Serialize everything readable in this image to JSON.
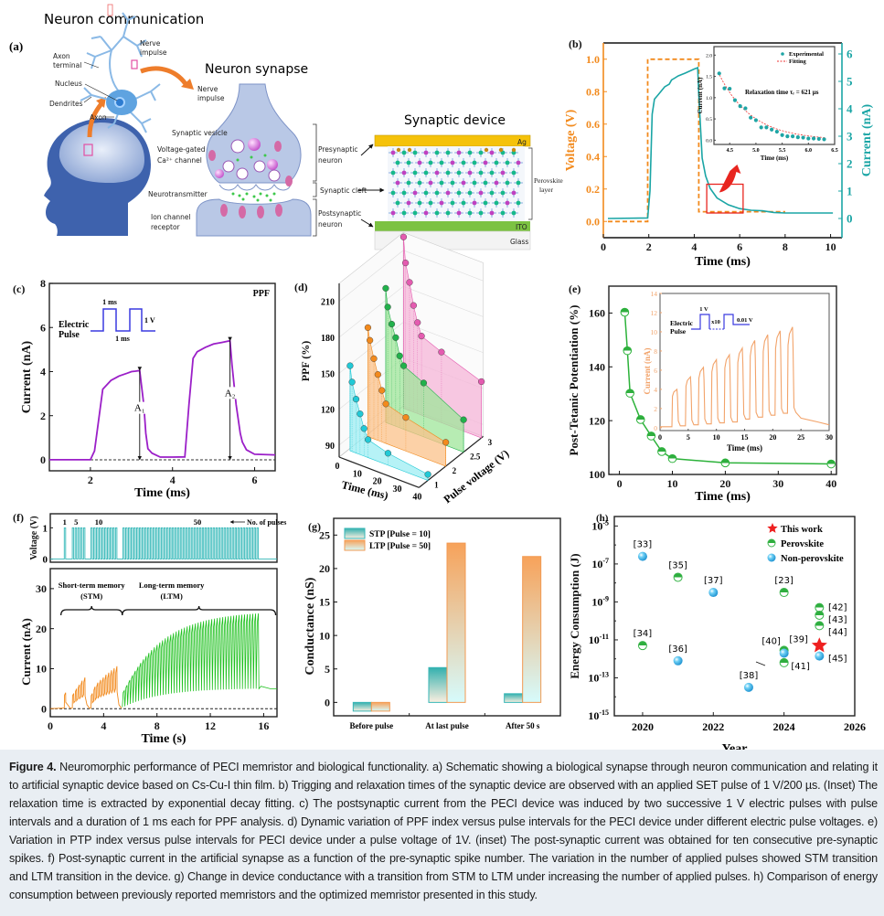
{
  "figure": {
    "number_label": "Figure 4.",
    "caption": "Neuromorphic performance of PECI memristor and biological functionality. a) Schematic showing a biological synapse through neuron communication and relating it to artificial synaptic device based on Cs-Cu-I thin film. b) Trigging and relaxation times of the synaptic device are observed with an applied SET pulse of 1 V/200 µs. (Inset) The relaxation time is extracted by exponential decay fitting. c) The postsynaptic current from the PECI device was induced by two successive 1 V electric pulses with pulse intervals and a duration of 1 ms each for PPF analysis. d) Dynamic variation of PPF index versus pulse intervals for the PECI device under different electric pulse voltages. e) Variation in PTP index versus pulse intervals for PECI device under a pulse voltage of 1V. (inset) The post-synaptic current was obtained for ten consecutive pre-synaptic spikes. f) Post-synaptic current in the artificial synapse as a function of the pre-synaptic spike number. The variation in the number of applied pulses showed STM transition and LTM transition in the device. g) Change in device conductance with a transition from STM to LTM under increasing the number of applied pulses. h) Comparison of energy consumption between previously reported memristors and the optimized memristor presented in this study."
  },
  "panel_a": {
    "label": "(a)",
    "title_communication": "Neuron communication",
    "title_synapse": "Neuron synapse",
    "title_device": "Synaptic device",
    "neuron_labels": {
      "nerve": "Nerve",
      "impulse": "impulse",
      "axon1": "Axon",
      "terminal": "terminal",
      "nucleus": "Nucleus",
      "dendrites": "Dendrites",
      "axon": "Axon"
    },
    "synapse_labels": {
      "nerve": "Nerve",
      "impulse": "impulse",
      "vesicle": "Synaptic vesicle",
      "vg1": "Voltage-gated",
      "vg2": "Ca²⁺ channel",
      "neurotransmitter": "Neurotransmitter",
      "ion1": "Ion channel",
      "ion2": "receptor",
      "pre1": "Presynaptic",
      "pre2": "neuron",
      "cleft": "Synaptic cleft",
      "post1": "Postsynaptic",
      "post2": "neuron"
    },
    "device_labels": {
      "ag": "Ag",
      "perov1": "Perovskite",
      "perov2": "layer",
      "ito": "ITO",
      "glass": "Glass"
    },
    "colors": {
      "ag": "#f5c20a",
      "ito": "#7cc242",
      "glass": "#f3f3f3",
      "brain": "#3f5e9e",
      "arrow": "#ee7d2b"
    }
  },
  "chart_data": [
    {
      "id": "b",
      "label": "(b)",
      "type": "line",
      "xlabel": "Time (ms)",
      "ylabel_left": "Voltage (V)",
      "ylabel_right": "Current (nA)",
      "xlim": [
        0,
        10.5
      ],
      "ylim_left": [
        -0.1,
        1.1
      ],
      "ylim_right": [
        -0.7,
        6.4
      ],
      "xticks": [
        0,
        2,
        4,
        6,
        8,
        10
      ],
      "yticks_left": [
        0.0,
        0.2,
        0.4,
        0.6,
        0.8,
        1.0
      ],
      "yticks_left_labels": [
        "0.0",
        "0.2",
        "0.4",
        "0.6",
        "0.8",
        "1.0"
      ],
      "yticks_right": [
        0,
        1,
        2,
        3,
        4,
        5,
        6
      ],
      "colors": {
        "voltage": "#f28a1d",
        "current": "#1aa5a5",
        "zoom_box": "#e8251f"
      },
      "series": [
        {
          "name": "Voltage",
          "axis": "left",
          "style": "dashed",
          "x": [
            0.2,
            1.95,
            1.95,
            4.2,
            4.2,
            8.0
          ],
          "y": [
            0.0,
            0.0,
            1.0,
            1.0,
            0.06,
            0.06
          ]
        },
        {
          "name": "Current",
          "axis": "right",
          "style": "solid",
          "x": [
            0.2,
            1.95,
            2.05,
            2.15,
            2.25,
            2.4,
            2.7,
            2.9,
            3.0,
            3.1,
            3.3,
            3.6,
            4.0,
            4.15,
            4.2,
            4.35,
            4.5,
            4.7,
            5.0,
            5.5,
            6.0,
            6.5,
            7.0,
            7.5,
            8.0,
            9.0,
            10.1
          ],
          "y": [
            0.0,
            0.02,
            1.0,
            3.8,
            4.35,
            4.5,
            4.8,
            4.9,
            5.05,
            5.1,
            5.2,
            5.3,
            5.45,
            5.5,
            4.5,
            2.2,
            1.55,
            1.1,
            0.75,
            0.5,
            0.36,
            0.3,
            0.28,
            0.22,
            0.2,
            0.2,
            0.2
          ]
        }
      ],
      "inset": {
        "xlabel": "Time (ms)",
        "ylabel": "Current (nA)",
        "xlim": [
          4.2,
          6.5
        ],
        "ylim": [
          -0.1,
          2.2
        ],
        "xticks": [
          4.5,
          5.0,
          5.5,
          6.0,
          6.5
        ],
        "xtick_labels": [
          "4.5",
          "5.0",
          "5.5",
          "6.0",
          "6.5"
        ],
        "yticks": [
          0.0,
          0.5,
          1.0,
          1.5,
          2.0
        ],
        "ytick_labels": [
          "0.0",
          "0.5",
          "1.0",
          "1.5",
          "2.0"
        ],
        "legend": [
          "Experimental",
          "Fitting"
        ],
        "annotation": "Relaxation time τᵣ = 621 µs",
        "experimental": {
          "x": [
            4.3,
            4.4,
            4.5,
            4.6,
            4.7,
            4.8,
            4.9,
            5.0,
            5.1,
            5.2,
            5.3,
            5.4,
            5.5,
            5.6,
            5.7,
            5.8,
            5.9,
            6.0,
            6.1,
            6.2,
            6.3
          ],
          "y": [
            1.57,
            1.22,
            1.21,
            0.94,
            0.8,
            0.75,
            0.53,
            0.47,
            0.3,
            0.3,
            0.25,
            0.2,
            0.12,
            0.09,
            0.09,
            0.07,
            0.06,
            0.04,
            0.04,
            0.03,
            0.02
          ]
        },
        "fit": {
          "tau_ms": 0.621,
          "a": 1.6,
          "x0": 4.28,
          "c": 0.0
        }
      }
    },
    {
      "id": "c",
      "label": "(c)",
      "type": "line",
      "xlabel": "Time (ms)",
      "ylabel": "Current (nA)",
      "xlim": [
        1.0,
        6.5
      ],
      "ylim": [
        -0.5,
        8
      ],
      "xticks": [
        2,
        4,
        6
      ],
      "yticks": [
        0,
        2,
        4,
        6,
        8
      ],
      "title_tag": "PPF",
      "color": "#9b1fc8",
      "series": [
        {
          "name": "Current",
          "x": [
            1.0,
            2.0,
            2.1,
            2.2,
            2.3,
            2.5,
            2.7,
            2.9,
            3.0,
            3.1,
            3.2,
            3.3,
            3.35,
            3.4,
            3.5,
            3.7,
            4.0,
            4.3,
            4.4,
            4.5,
            4.6,
            4.8,
            5.0,
            5.2,
            5.4,
            5.45,
            5.55,
            5.65,
            5.7,
            5.8,
            6.0,
            6.5
          ],
          "y": [
            0.0,
            0.0,
            0.4,
            1.8,
            3.2,
            3.6,
            3.8,
            3.93,
            4.0,
            4.02,
            4.05,
            2.5,
            1.2,
            0.5,
            0.3,
            0.12,
            0.12,
            0.13,
            2.5,
            4.6,
            4.9,
            5.1,
            5.25,
            5.32,
            5.4,
            4.3,
            2.5,
            1.2,
            0.8,
            0.45,
            0.25,
            0.22
          ]
        }
      ],
      "annotations": [
        {
          "text": "A₁",
          "x": 3.2,
          "y_from": 0,
          "y_to": 4.05
        },
        {
          "text": "A₂",
          "x": 5.4,
          "y_from": 0,
          "y_to": 5.4
        }
      ],
      "inset": {
        "label1": "Electric",
        "label2": "Pulse",
        "width_label": "1 ms",
        "gap_label": "1 ms",
        "amp_label": "1 V",
        "color": "#3a3ae0"
      }
    },
    {
      "id": "d",
      "label": "(d)",
      "type": "scatter",
      "projection": "3d",
      "xlabel": "Time (ms)",
      "ylabel": "Pulse voltage (V)",
      "zlabel": "PPF (%)",
      "xticks": [
        0,
        10,
        20,
        30,
        40
      ],
      "yticks": [
        "1",
        "2",
        "2.5",
        "3"
      ],
      "zticks": [
        90,
        120,
        150,
        180,
        210
      ],
      "zlim": [
        80,
        225
      ],
      "series": [
        {
          "name": "1 V",
          "color": "#22c9d6",
          "fill": "#9deef3",
          "x": [
            1,
            2,
            4,
            6,
            8,
            10,
            20,
            40
          ],
          "y": [
            151,
            138,
            125,
            114,
            103,
            95,
            90,
            85
          ]
        },
        {
          "name": "2 V",
          "color": "#f28a1d",
          "fill": "#fbc28a",
          "x": [
            1,
            2,
            4,
            6,
            8,
            10,
            20,
            40
          ],
          "y": [
            171,
            161,
            147,
            135,
            123,
            113,
            108,
            100
          ]
        },
        {
          "name": "2.5 V",
          "color": "#22b14c",
          "fill": "#9fe59a",
          "x": [
            1,
            2,
            4,
            6,
            8,
            10,
            20,
            40
          ],
          "y": [
            192,
            177,
            164,
            154,
            140,
            133,
            125,
            107
          ]
        },
        {
          "name": "3 V",
          "color": "#e45bb0",
          "fill": "#f6b5d8",
          "x": [
            1,
            2,
            4,
            6,
            8,
            10,
            20,
            40
          ],
          "y": [
            223,
            202,
            187,
            169,
            156,
            146,
            139,
            127
          ]
        }
      ]
    },
    {
      "id": "e",
      "label": "(e)",
      "type": "line",
      "xlabel": "Time (ms)",
      "ylabel": "Post-Tetanic Potentiation (%)",
      "xlim": [
        -2,
        41
      ],
      "ylim": [
        100,
        170
      ],
      "xticks": [
        0,
        10,
        20,
        30,
        40
      ],
      "yticks": [
        100,
        120,
        140,
        160
      ],
      "color": "#2cb23a",
      "series": [
        {
          "name": "PTP",
          "x": [
            1,
            1.5,
            2,
            4,
            6,
            8,
            10,
            20,
            40
          ],
          "y": [
            160.3,
            146,
            130.2,
            120.4,
            114.3,
            108.5,
            105.9,
            104.3,
            103.9
          ]
        }
      ],
      "inset": {
        "xlabel": "Time (ms)",
        "ylabel": "Current (nA)",
        "xlim": [
          0,
          30
        ],
        "ylim": [
          -0.3,
          14
        ],
        "xticks": [
          0,
          5,
          10,
          15,
          20,
          25,
          30
        ],
        "yticks": [
          0,
          2,
          4,
          6,
          8,
          10,
          12,
          14
        ],
        "color": "#f2a36a",
        "pulse_peaks": [
          4.0,
          5.3,
          6.3,
          7.1,
          7.6,
          8.3,
          9.1,
          9.7,
          10.1,
          10.5
        ],
        "pulse_bases": [
          0.2,
          0.3,
          0.4,
          0.5,
          0.6,
          0.9,
          1.1,
          1.3,
          1.5,
          1.6
        ],
        "pulse_starts": [
          2.1,
          4.5,
          6.8,
          9.1,
          11.4,
          13.7,
          15.9,
          18.2,
          20.4,
          22.6
        ],
        "legend": {
          "label1": "Electric",
          "label2": "Pulse",
          "amp": "1 V",
          "count": "x10",
          "rest": "0.01 V",
          "color": "#3a3ae0"
        }
      }
    },
    {
      "id": "f",
      "label": "(f)",
      "type": "line",
      "xlabel": "Time (s)",
      "ylabel_top": "Voltage (V)",
      "ylabel_bottom": "Current (nA)",
      "xlim": [
        0,
        17
      ],
      "xticks": [
        0,
        4,
        8,
        12,
        16
      ],
      "yticks_top": [
        0,
        1
      ],
      "yticks_bottom": [
        0,
        10,
        20,
        30
      ],
      "ylim_bottom": [
        -2,
        35
      ],
      "pulse_groups": [
        {
          "count": 1,
          "start": 1.05,
          "end": 1.15,
          "label": "1"
        },
        {
          "count": 5,
          "start": 1.65,
          "end": 2.6,
          "label": "5"
        },
        {
          "count": 10,
          "start": 3.05,
          "end": 5.0,
          "label": "10"
        },
        {
          "count": 50,
          "start": 5.45,
          "end": 15.6,
          "label": "50"
        }
      ],
      "pulses_legend": "No. of pulses",
      "stm_label": [
        "Short-term memory",
        "(STM)"
      ],
      "ltm_label": [
        "Long-term memory",
        "(LTM)"
      ],
      "stm_color": "#f28a1d",
      "ltm_color": "#1fc11f",
      "voltage_color": "#34b8b8",
      "stm_peaks": [
        [
          4.0
        ],
        [
          3.8,
          5.0,
          6.0,
          7.0,
          7.8
        ],
        [
          3.8,
          5.5,
          6.5,
          7.2,
          7.8,
          8.5,
          9.0,
          9.6,
          10.1,
          10.6
        ]
      ],
      "ltm_peak_start": 4.5,
      "ltm_peak_end": 23.8,
      "ltm_base_start": 0.6,
      "ltm_base_end": 5.0,
      "ltm_tail": 5.0
    },
    {
      "id": "g",
      "label": "(g)",
      "type": "bar",
      "ylabel": "Conductance (nS)",
      "categories": [
        "Before pulse",
        "At last pulse",
        "After 50 s"
      ],
      "ylim": [
        -2,
        27.5
      ],
      "yticks": [
        0,
        5,
        10,
        15,
        20,
        25
      ],
      "series": [
        {
          "name": "STP [Pulse = 10]",
          "values": [
            0.05,
            5.2,
            1.3
          ],
          "color_top": "#33b0ae",
          "color_bottom": "#fbefe0",
          "edge": "#35b5b5"
        },
        {
          "name": "LTP [Pulse = 50]",
          "values": [
            0.05,
            23.8,
            21.8
          ],
          "color_top": "#f7a25a",
          "color_bottom": "#d6fbfc",
          "edge": "#f29a52"
        }
      ]
    },
    {
      "id": "h",
      "label": "(h)",
      "type": "scatter",
      "xlabel": "Year",
      "ylabel": "Energy Consumption (J)",
      "xlim": [
        2019.2,
        2026
      ],
      "xticks": [
        2020,
        2022,
        2024,
        2026
      ],
      "yscale": "log",
      "ylim_exp": [
        -15,
        -4.5
      ],
      "yticks_exp": [
        -15,
        -13,
        -11,
        -9,
        -7,
        -5
      ],
      "legend": [
        "This work",
        "Perovskite",
        "Non-perovskite"
      ],
      "colors": {
        "this_work": "#ee2020",
        "perovskite": "#39b54a",
        "non_perovskite": "#29a8e0"
      },
      "points": [
        {
          "ref": "[33]",
          "year": 2020,
          "exp": -6.6,
          "kind": "non_perovskite"
        },
        {
          "ref": "[34]",
          "year": 2020,
          "exp": -11.3,
          "kind": "perovskite"
        },
        {
          "ref": "[35]",
          "year": 2021,
          "exp": -7.7,
          "kind": "perovskite"
        },
        {
          "ref": "[36]",
          "year": 2021,
          "exp": -12.1,
          "kind": "non_perovskite"
        },
        {
          "ref": "[37]",
          "year": 2022,
          "exp": -8.5,
          "kind": "non_perovskite"
        },
        {
          "ref": "[38]",
          "year": 2023,
          "exp": -13.5,
          "kind": "non_perovskite"
        },
        {
          "ref": "[23]",
          "year": 2024,
          "exp": -8.5,
          "kind": "perovskite"
        },
        {
          "ref": "[39]",
          "year": 2024,
          "exp": -11.55,
          "kind": "perovskite"
        },
        {
          "ref": "[40]",
          "year": 2024,
          "exp": -11.7,
          "kind": "non_perovskite"
        },
        {
          "ref": "[41]",
          "year": 2024,
          "exp": -12.2,
          "kind": "perovskite"
        },
        {
          "ref": "[42]",
          "year": 2025,
          "exp": -9.3,
          "kind": "perovskite"
        },
        {
          "ref": "[43]",
          "year": 2025,
          "exp": -9.7,
          "kind": "perovskite"
        },
        {
          "ref": "[44]",
          "year": 2025,
          "exp": -10.25,
          "kind": "perovskite"
        },
        {
          "ref": "[45]",
          "year": 2025,
          "exp": -11.85,
          "kind": "non_perovskite"
        },
        {
          "ref": "",
          "year": 2025,
          "exp": -11.3,
          "kind": "this_work"
        }
      ]
    }
  ]
}
